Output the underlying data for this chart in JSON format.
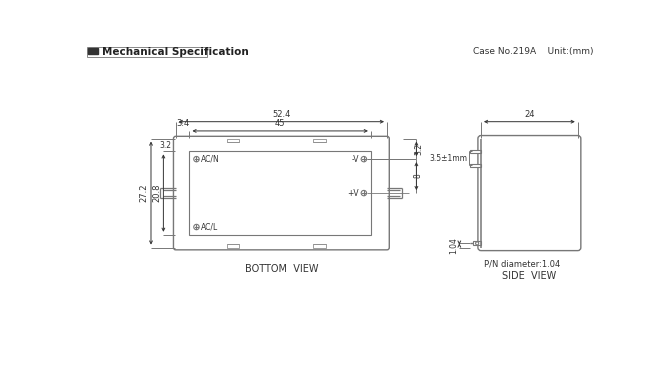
{
  "title": "Mechanical Specification",
  "case_info": "Case No.219A    Unit:(mm)",
  "bottom_view_label": "BOTTOM  VIEW",
  "side_view_label": "SIDE  VIEW",
  "bg_color": "#ffffff",
  "lc": "#777777",
  "tc": "#333333",
  "dims": {
    "52_4": "52.4",
    "45": "45",
    "3_4": "3.4",
    "27_2": "27.2",
    "20_8": "20.8",
    "3_2": "3.2",
    "8": "8",
    "24": "24",
    "3_5": "3.5±1mm",
    "1_04": "1.04",
    "pin_note": "P/N diameter:1.04"
  }
}
